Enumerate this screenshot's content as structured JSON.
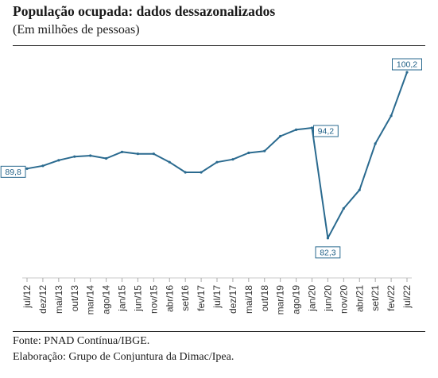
{
  "header": {
    "title": "População ocupada: dados dessazonalizados",
    "subtitle": "(Em milhões de pessoas)"
  },
  "footer": {
    "source": "Fonte: PNAD Contínua/IBGE.",
    "credit": "Elaboração: Grupo de Conjuntura da Dimac/Ipea."
  },
  "colors": {
    "line": "#2a6a8f",
    "label_border": "#2a6a8f"
  },
  "chart_data": {
    "type": "line",
    "title": "População ocupada: dados dessazonalizados",
    "subtitle": "(Em milhões de pessoas)",
    "xlabel": "",
    "ylabel": "",
    "ylim": [
      78,
      102
    ],
    "grid": false,
    "legend": "none",
    "x_tick_labels": [
      "jul/12",
      "dez/12",
      "mai/13",
      "out/13",
      "mar/14",
      "ago/14",
      "jan/15",
      "jun/15",
      "nov/15",
      "abr/16",
      "set/16",
      "fev/17",
      "jul/17",
      "dez/17",
      "mai/18",
      "out/18",
      "mar/19",
      "ago/19",
      "jan/20",
      "jun/20",
      "nov/20",
      "abr/21",
      "set/21",
      "fev/22",
      "jul/22"
    ],
    "series": [
      {
        "values": [
          {
            "x": "jul/12",
            "y": 89.8
          },
          {
            "x": "dez/12",
            "y": 90.1
          },
          {
            "x": "mai/13",
            "y": 90.7
          },
          {
            "x": "out/13",
            "y": 91.1
          },
          {
            "x": "mar/14",
            "y": 91.2
          },
          {
            "x": "ago/14",
            "y": 90.9
          },
          {
            "x": "jan/15",
            "y": 91.6
          },
          {
            "x": "jun/15",
            "y": 91.4
          },
          {
            "x": "nov/15",
            "y": 91.4
          },
          {
            "x": "abr/16",
            "y": 90.5
          },
          {
            "x": "set/16",
            "y": 89.4
          },
          {
            "x": "fev/17",
            "y": 89.4
          },
          {
            "x": "jul/17",
            "y": 90.5
          },
          {
            "x": "dez/17",
            "y": 90.8
          },
          {
            "x": "mai/18",
            "y": 91.5
          },
          {
            "x": "out/18",
            "y": 91.7
          },
          {
            "x": "mar/19",
            "y": 93.3
          },
          {
            "x": "ago/19",
            "y": 94.0
          },
          {
            "x": "jan/20",
            "y": 94.2
          },
          {
            "x": "jun/20",
            "y": 82.3
          },
          {
            "x": "nov/20",
            "y": 85.5
          },
          {
            "x": "abr/21",
            "y": 87.5
          },
          {
            "x": "set/21",
            "y": 92.5
          },
          {
            "x": "fev/22",
            "y": 95.5
          },
          {
            "x": "jul/22",
            "y": 100.2
          }
        ]
      }
    ],
    "annotations": [
      {
        "x": "jul/12",
        "y": 89.8,
        "label": "89,8"
      },
      {
        "x": "jan/20",
        "y": 94.2,
        "label": "94,2"
      },
      {
        "x": "jun/20",
        "y": 82.3,
        "label": "82,3"
      },
      {
        "x": "jul/22",
        "y": 100.2,
        "label": "100,2"
      }
    ]
  }
}
